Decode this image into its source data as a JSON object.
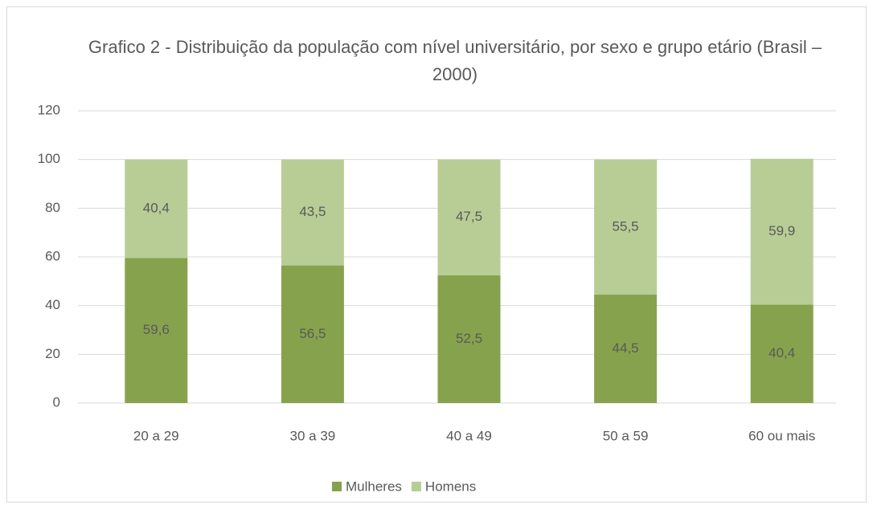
{
  "chart_data": {
    "type": "stacked_bar",
    "title": "Grafico 2 - Distribuição da população com nível universitário, por sexo e grupo etário (Brasil – 2000)",
    "categories": [
      "20 a 29",
      "30 a 39",
      "40 a 49",
      "50 a 59",
      "60 ou mais"
    ],
    "series": [
      {
        "name": "Mulheres",
        "color": "#87a24d",
        "values": [
          59.6,
          56.5,
          52.5,
          44.5,
          40.4
        ],
        "value_labels": [
          "59,6",
          "56,5",
          "52,5",
          "44,5",
          "40,4"
        ]
      },
      {
        "name": "Homens",
        "color": "#b7cd95",
        "values": [
          40.4,
          43.5,
          47.5,
          55.5,
          59.9
        ],
        "value_labels": [
          "40,4",
          "43,5",
          "47,5",
          "55,5",
          "59,9"
        ]
      }
    ],
    "ylim": [
      0,
      120
    ],
    "yticks": [
      0,
      20,
      40,
      60,
      80,
      100,
      120
    ],
    "grid": true,
    "legend": "bottom"
  }
}
